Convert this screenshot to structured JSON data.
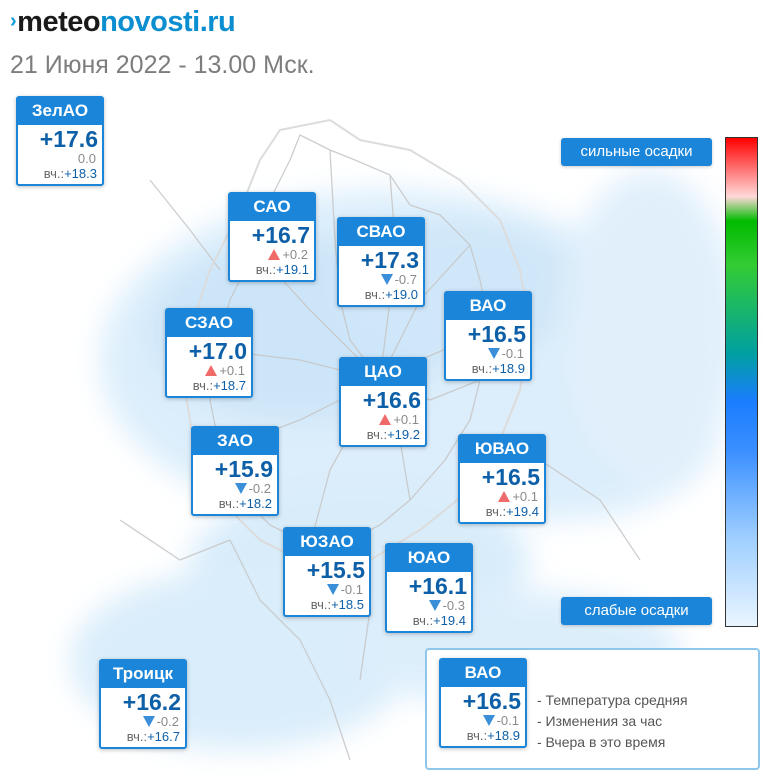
{
  "header": {
    "logo_mark": "›",
    "logo_part1": "meteo",
    "logo_part2": "novosti.ru",
    "date": "21 Июня 2022 - 13.00 Мск."
  },
  "map_colors": {
    "precip_light": "#d6ebfb",
    "precip_mid": "#b4d9f6",
    "district_lines": "#c8c8c8",
    "card_blue": "#1b86d9",
    "temp_text": "#0d5fa8",
    "rise_arrow": "#f06a6a",
    "fall_arrow": "#3a8fd8"
  },
  "districts": [
    {
      "id": "zelao",
      "name": "ЗелАО",
      "temp": "+17.6",
      "change": "0.0",
      "trend": "none",
      "yesterday_label": "вч.:",
      "yesterday": "+18.3"
    },
    {
      "id": "sao",
      "name": "САО",
      "temp": "+16.7",
      "change": "+0.2",
      "trend": "up",
      "yesterday_label": "вч.:",
      "yesterday": "+19.1"
    },
    {
      "id": "svao",
      "name": "СВАО",
      "temp": "+17.3",
      "change": "-0.7",
      "trend": "down",
      "yesterday_label": "вч.:",
      "yesterday": "+19.0"
    },
    {
      "id": "vao",
      "name": "ВАО",
      "temp": "+16.5",
      "change": "-0.1",
      "trend": "down",
      "yesterday_label": "вч.:",
      "yesterday": "+18.9"
    },
    {
      "id": "szao",
      "name": "СЗАО",
      "temp": "+17.0",
      "change": "+0.1",
      "trend": "up",
      "yesterday_label": "вч.:",
      "yesterday": "+18.7"
    },
    {
      "id": "cao",
      "name": "ЦАО",
      "temp": "+16.6",
      "change": "+0.1",
      "trend": "up",
      "yesterday_label": "вч.:",
      "yesterday": "+19.2"
    },
    {
      "id": "zao",
      "name": "ЗАО",
      "temp": "+15.9",
      "change": "-0.2",
      "trend": "down",
      "yesterday_label": "вч.:",
      "yesterday": "+18.2"
    },
    {
      "id": "yuvao",
      "name": "ЮВАО",
      "temp": "+16.5",
      "change": "+0.1",
      "trend": "up",
      "yesterday_label": "вч.:",
      "yesterday": "+19.4"
    },
    {
      "id": "yuzao",
      "name": "ЮЗАО",
      "temp": "+15.5",
      "change": "-0.1",
      "trend": "down",
      "yesterday_label": "вч.:",
      "yesterday": "+18.5"
    },
    {
      "id": "yuao",
      "name": "ЮАО",
      "temp": "+16.1",
      "change": "-0.3",
      "trend": "down",
      "yesterday_label": "вч.:",
      "yesterday": "+19.4"
    },
    {
      "id": "troitsk",
      "name": "Троицк",
      "temp": "+16.2",
      "change": "-0.2",
      "trend": "down",
      "yesterday_label": "вч.:",
      "yesterday": "+16.7"
    }
  ],
  "precip_scale": {
    "top_label": "сильные осадки",
    "bottom_label": "слабые осадки"
  },
  "legend": {
    "example": {
      "name": "ВАО",
      "temp": "+16.5",
      "change": "-0.1",
      "trend": "down",
      "yesterday_label": "вч.:",
      "yesterday": "+18.9"
    },
    "line_temp": "- Температура средняя",
    "line_change": "- Изменения за час",
    "line_yesterday": "- Вчера в это время"
  }
}
